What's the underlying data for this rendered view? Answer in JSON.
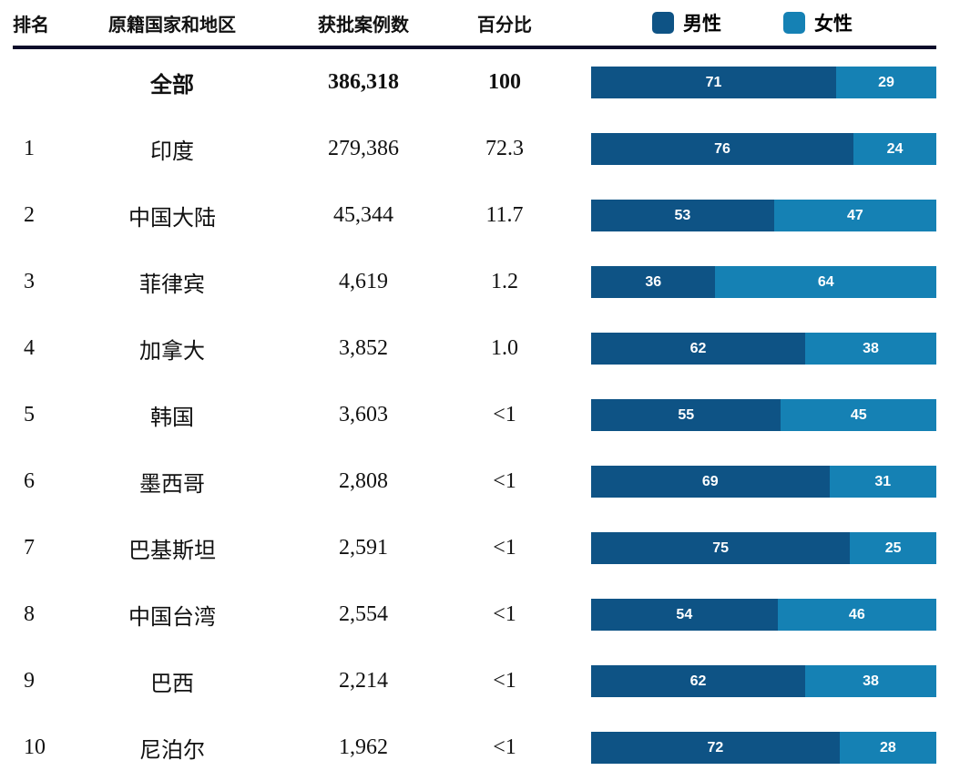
{
  "table": {
    "headers": {
      "rank": "排名",
      "country": "原籍国家和地区",
      "count": "获批案例数",
      "percent": "百分比"
    },
    "legend": [
      {
        "label": "男性",
        "color": "#0e5385"
      },
      {
        "label": "女性",
        "color": "#1581b4"
      }
    ],
    "rows": [
      {
        "rank": "",
        "country": "全部",
        "count": "386,318",
        "percent": "100",
        "male": 71,
        "female": 29,
        "total": true
      },
      {
        "rank": "1",
        "country": "印度",
        "count": "279,386",
        "percent": "72.3",
        "male": 76,
        "female": 24,
        "total": false
      },
      {
        "rank": "2",
        "country": "中国大陆",
        "count": "45,344",
        "percent": "11.7",
        "male": 53,
        "female": 47,
        "total": false
      },
      {
        "rank": "3",
        "country": "菲律宾",
        "count": "4,619",
        "percent": "1.2",
        "male": 36,
        "female": 64,
        "total": false
      },
      {
        "rank": "4",
        "country": "加拿大",
        "count": "3,852",
        "percent": "1.0",
        "male": 62,
        "female": 38,
        "total": false
      },
      {
        "rank": "5",
        "country": "韩国",
        "count": "3,603",
        "percent": "<1",
        "male": 55,
        "female": 45,
        "total": false
      },
      {
        "rank": "6",
        "country": "墨西哥",
        "count": "2,808",
        "percent": "<1",
        "male": 69,
        "female": 31,
        "total": false
      },
      {
        "rank": "7",
        "country": "巴基斯坦",
        "count": "2,591",
        "percent": "<1",
        "male": 75,
        "female": 25,
        "total": false
      },
      {
        "rank": "8",
        "country": "中国台湾",
        "count": "2,554",
        "percent": "<1",
        "male": 54,
        "female": 46,
        "total": false
      },
      {
        "rank": "9",
        "country": "巴西",
        "count": "2,214",
        "percent": "<1",
        "male": 62,
        "female": 38,
        "total": false
      },
      {
        "rank": "10",
        "country": "尼泊尔",
        "count": "1,962",
        "percent": "<1",
        "male": 72,
        "female": 28,
        "total": false
      }
    ]
  },
  "chart_data": {
    "type": "bar",
    "orientation": "horizontal-stacked",
    "title": "",
    "categories": [
      "全部",
      "印度",
      "中国大陆",
      "菲律宾",
      "加拿大",
      "韩国",
      "墨西哥",
      "巴基斯坦",
      "中国台湾",
      "巴西",
      "尼泊尔"
    ],
    "ranks": [
      "",
      "1",
      "2",
      "3",
      "4",
      "5",
      "6",
      "7",
      "8",
      "9",
      "10"
    ],
    "counts": [
      386318,
      279386,
      45344,
      4619,
      3852,
      3603,
      2808,
      2591,
      2554,
      2214,
      1962
    ],
    "percents": [
      "100",
      "72.3",
      "11.7",
      "1.2",
      "1.0",
      "<1",
      "<1",
      "<1",
      "<1",
      "<1",
      "<1"
    ],
    "series": [
      {
        "name": "男性",
        "values": [
          71,
          76,
          53,
          36,
          62,
          55,
          69,
          75,
          54,
          62,
          72
        ],
        "color": "#0e5385"
      },
      {
        "name": "女性",
        "values": [
          29,
          24,
          47,
          64,
          38,
          45,
          31,
          25,
          46,
          38,
          28
        ],
        "color": "#1581b4"
      }
    ],
    "xlim": [
      0,
      100
    ],
    "legend_position": "top-right",
    "grid": false,
    "data_labels": true
  }
}
